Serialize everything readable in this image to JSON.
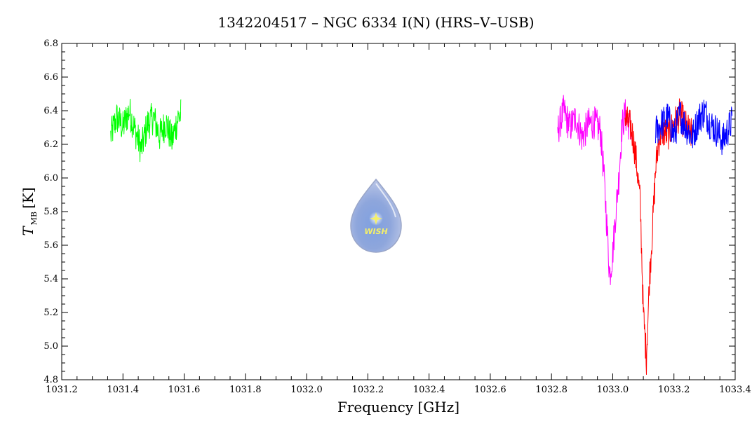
{
  "chart_data": {
    "type": "line",
    "title": "1342204517 – NGC 6334 I(N) (HRS–V–USB)",
    "xlabel": "Frequency [GHz]",
    "ylabel_main": "T",
    "ylabel_sub": "MB",
    "ylabel_unit": "[K]",
    "xlim": [
      1031.2,
      1033.4
    ],
    "ylim": [
      4.8,
      6.8
    ],
    "x_ticks": [
      "1031.2",
      "1031.4",
      "1031.6",
      "1031.8",
      "1032.0",
      "1032.2",
      "1032.4",
      "1032.6",
      "1032.8",
      "1033.0",
      "1033.2",
      "1033.4"
    ],
    "y_ticks": [
      "4.8",
      "5.0",
      "5.2",
      "5.4",
      "5.6",
      "5.8",
      "6.0",
      "6.2",
      "6.4",
      "6.6",
      "6.8"
    ],
    "grid": false,
    "legend": "none",
    "logo_text": "WISH",
    "series": [
      {
        "color": "#00ff00",
        "x": [
          1031.36,
          1031.38,
          1031.4,
          1031.42,
          1031.44,
          1031.46,
          1031.48,
          1031.5,
          1031.52,
          1031.54,
          1031.56,
          1031.58,
          1031.59
        ],
        "y": [
          6.25,
          6.36,
          6.3,
          6.4,
          6.28,
          6.17,
          6.32,
          6.36,
          6.25,
          6.33,
          6.22,
          6.36,
          6.38
        ]
      },
      {
        "color": "#ff00ff",
        "x": [
          1032.82,
          1032.84,
          1032.86,
          1032.88,
          1032.9,
          1032.92,
          1032.94,
          1032.96,
          1032.97,
          1032.98,
          1032.99,
          1033.0,
          1033.01,
          1033.02,
          1033.03,
          1033.04,
          1033.05,
          1033.06
        ],
        "y": [
          6.28,
          6.4,
          6.3,
          6.36,
          6.24,
          6.32,
          6.33,
          6.28,
          6.05,
          5.75,
          5.42,
          5.55,
          5.8,
          6.0,
          6.3,
          6.38,
          6.33,
          6.3
        ]
      },
      {
        "color": "#ff0000",
        "x": [
          1033.04,
          1033.06,
          1033.07,
          1033.08,
          1033.09,
          1033.1,
          1033.11,
          1033.12,
          1033.13,
          1033.14,
          1033.15,
          1033.16,
          1033.18,
          1033.2,
          1033.22,
          1033.24,
          1033.26
        ],
        "y": [
          6.35,
          6.3,
          6.2,
          6.05,
          5.85,
          5.2,
          4.93,
          5.4,
          5.7,
          6.05,
          6.22,
          6.28,
          6.26,
          6.32,
          6.38,
          6.3,
          6.25
        ]
      },
      {
        "color": "#0000ff",
        "x": [
          1033.14,
          1033.16,
          1033.18,
          1033.2,
          1033.22,
          1033.24,
          1033.26,
          1033.28,
          1033.3,
          1033.32,
          1033.34,
          1033.36,
          1033.38,
          1033.39
        ],
        "y": [
          6.28,
          6.32,
          6.36,
          6.25,
          6.38,
          6.3,
          6.24,
          6.35,
          6.4,
          6.32,
          6.28,
          6.22,
          6.3,
          6.34
        ]
      }
    ]
  }
}
